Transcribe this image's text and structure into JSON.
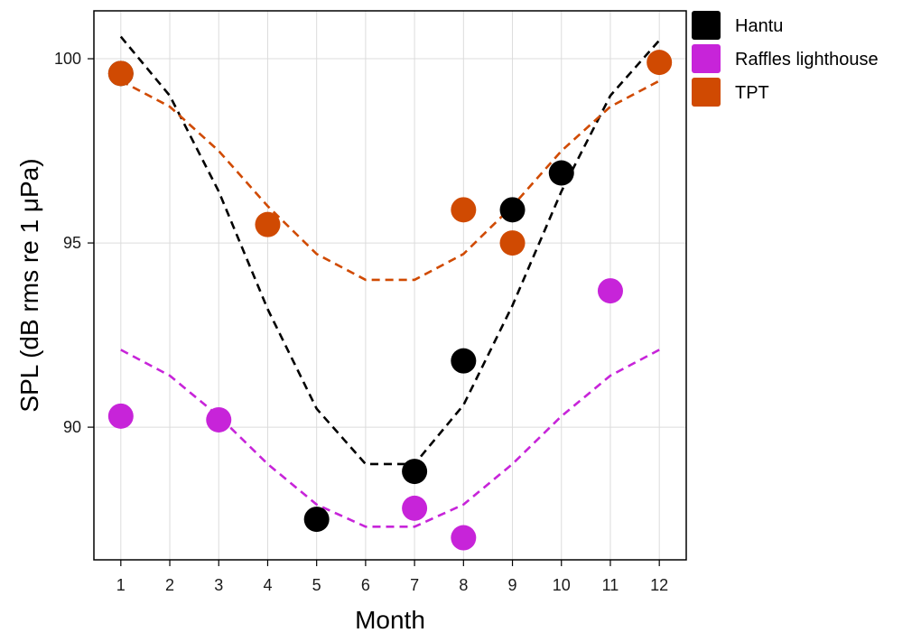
{
  "chart_data": {
    "type": "scatter",
    "title": "",
    "xlabel": "Month",
    "ylabel": "SPL (dB rms re 1 μPa)",
    "xlim": [
      0.45,
      12.55
    ],
    "ylim": [
      86.4,
      101.3
    ],
    "xticks": [
      1,
      2,
      3,
      4,
      5,
      6,
      7,
      8,
      9,
      10,
      11,
      12
    ],
    "yticks": [
      90,
      95,
      100
    ],
    "grid": true,
    "legend_position": "top-right outside",
    "series": [
      {
        "name": "Hantu",
        "color": "#000000",
        "points": [
          [
            1,
            99.6
          ],
          [
            5,
            87.5
          ],
          [
            7,
            88.8
          ],
          [
            8,
            91.8
          ],
          [
            9,
            95.9
          ],
          [
            10,
            96.9
          ]
        ],
        "fit": [
          [
            1,
            100.6
          ],
          [
            2,
            99.0
          ],
          [
            3,
            96.4
          ],
          [
            4,
            93.2
          ],
          [
            5,
            90.5
          ],
          [
            6,
            89.0
          ],
          [
            7,
            89.0
          ],
          [
            8,
            90.6
          ],
          [
            9,
            93.3
          ],
          [
            10,
            96.4
          ],
          [
            11,
            99.0
          ],
          [
            12,
            100.5
          ]
        ]
      },
      {
        "name": "Raffles lighthouse",
        "color": "#c724d9",
        "points": [
          [
            1,
            90.3
          ],
          [
            3,
            90.2
          ],
          [
            7,
            87.8
          ],
          [
            8,
            87.0
          ],
          [
            11,
            93.7
          ]
        ],
        "fit": [
          [
            1,
            92.1
          ],
          [
            2,
            91.4
          ],
          [
            3,
            90.3
          ],
          [
            4,
            89.0
          ],
          [
            5,
            87.9
          ],
          [
            6,
            87.3
          ],
          [
            7,
            87.3
          ],
          [
            8,
            87.9
          ],
          [
            9,
            89.0
          ],
          [
            10,
            90.3
          ],
          [
            11,
            91.4
          ],
          [
            12,
            92.1
          ]
        ]
      },
      {
        "name": "TPT",
        "color": "#d04a02",
        "points": [
          [
            1,
            99.6
          ],
          [
            4,
            95.5
          ],
          [
            8,
            95.9
          ],
          [
            9,
            95.0
          ],
          [
            12,
            99.9
          ]
        ],
        "fit": [
          [
            1,
            99.4
          ],
          [
            2,
            98.7
          ],
          [
            3,
            97.5
          ],
          [
            4,
            96.0
          ],
          [
            5,
            94.7
          ],
          [
            6,
            94.0
          ],
          [
            7,
            94.0
          ],
          [
            8,
            94.7
          ],
          [
            9,
            96.0
          ],
          [
            10,
            97.5
          ],
          [
            11,
            98.7
          ],
          [
            12,
            99.4
          ]
        ]
      }
    ]
  }
}
